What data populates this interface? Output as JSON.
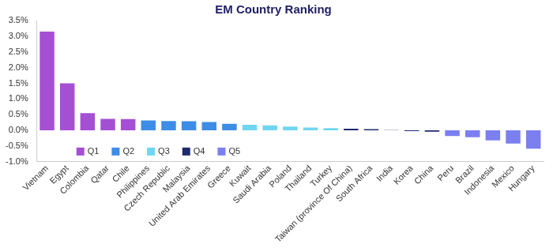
{
  "chart_data": {
    "type": "bar",
    "title": "EM Country Ranking",
    "categories": [
      "Vietnam",
      "Egypt",
      "Colombia",
      "Qatar",
      "Chile",
      "Philippines",
      "Czech Republic",
      "Malaysia",
      "United Arab Emirates",
      "Greece",
      "Kuwait",
      "Saudi Arabia",
      "Poland",
      "Thailand",
      "Turkey",
      "Taiwan (province Of China)",
      "South Africa",
      "India",
      "Korea",
      "China",
      "Peru",
      "Brazil",
      "Indonesia",
      "Mexico",
      "Hungary"
    ],
    "series": [
      {
        "name": "Q1",
        "color": "#a54fd3",
        "values": [
          3.15,
          1.5,
          0.55,
          0.37,
          0.36,
          null,
          null,
          null,
          null,
          null,
          null,
          null,
          null,
          null,
          null,
          null,
          null,
          null,
          null,
          null,
          null,
          null,
          null,
          null,
          null
        ]
      },
      {
        "name": "Q2",
        "color": "#3d8de6",
        "values": [
          null,
          null,
          null,
          null,
          null,
          0.32,
          0.3,
          0.29,
          0.27,
          0.21,
          null,
          null,
          null,
          null,
          null,
          null,
          null,
          null,
          null,
          null,
          null,
          null,
          null,
          null,
          null
        ]
      },
      {
        "name": "Q3",
        "color": "#6fd6f0",
        "values": [
          null,
          null,
          null,
          null,
          null,
          null,
          null,
          null,
          null,
          null,
          0.18,
          0.16,
          0.12,
          0.09,
          0.07,
          null,
          null,
          null,
          null,
          null,
          null,
          null,
          null,
          null,
          null
        ]
      },
      {
        "name": "Q4",
        "color": "#1c2a6e",
        "values": [
          null,
          null,
          null,
          null,
          null,
          null,
          null,
          null,
          null,
          null,
          null,
          null,
          null,
          null,
          null,
          0.05,
          0.04,
          0.01,
          -0.02,
          -0.04,
          null,
          null,
          null,
          null,
          null
        ]
      },
      {
        "name": "Q5",
        "color": "#7b7ff0",
        "values": [
          null,
          null,
          null,
          null,
          null,
          null,
          null,
          null,
          null,
          null,
          null,
          null,
          null,
          null,
          null,
          null,
          null,
          null,
          null,
          null,
          -0.18,
          -0.22,
          -0.32,
          -0.42,
          -0.58
        ]
      }
    ],
    "ylim": [
      -1,
      3.5
    ],
    "yticks": [
      {
        "value": -1,
        "label": "-1.0%"
      },
      {
        "value": -0.5,
        "label": "-0.5%"
      },
      {
        "value": 0,
        "label": "0.0%"
      },
      {
        "value": 0.5,
        "label": "0.5%"
      },
      {
        "value": 1,
        "label": "1.0%"
      },
      {
        "value": 1.5,
        "label": "1.5%"
      },
      {
        "value": 2,
        "label": "2.0%"
      },
      {
        "value": 2.5,
        "label": "2.5%"
      },
      {
        "value": 3,
        "label": "3.0%"
      },
      {
        "value": 3.5,
        "label": "3.5%"
      }
    ],
    "grid": false,
    "legend": "lower left"
  }
}
